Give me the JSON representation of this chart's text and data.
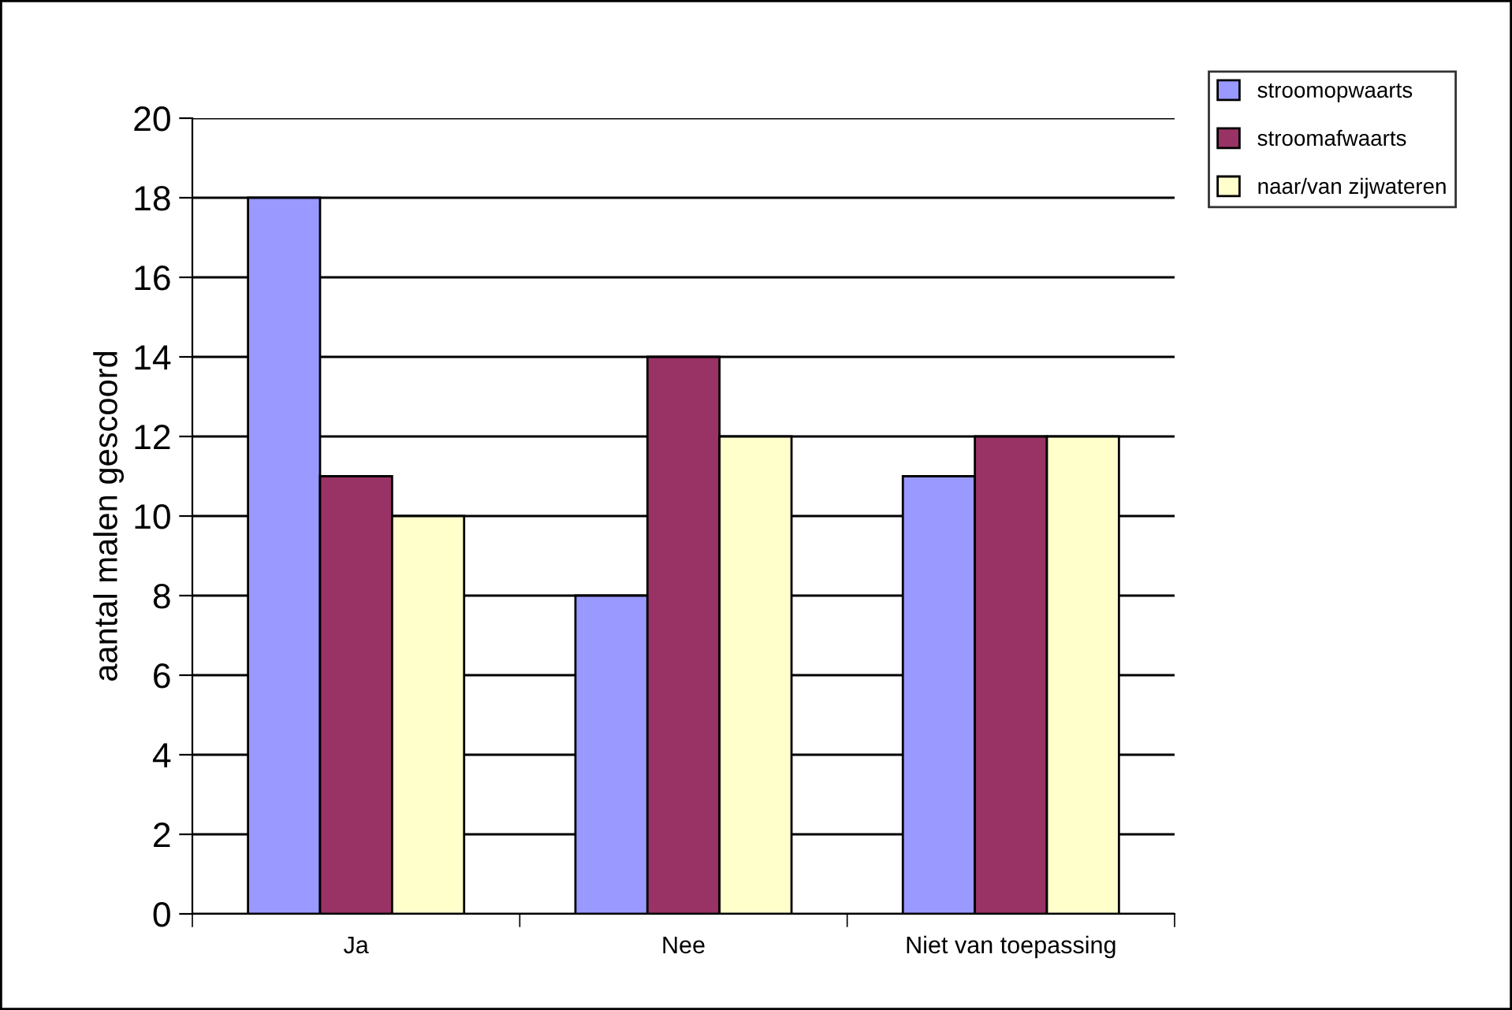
{
  "chart_data": {
    "type": "bar",
    "ylabel": "aantal malen gescoord",
    "categories": [
      "Ja",
      "Nee",
      "Niet van toepassing"
    ],
    "series": [
      {
        "name": "stroomopwaarts",
        "color": "#9999ff",
        "values": [
          18,
          8,
          11
        ]
      },
      {
        "name": "stroomafwaarts",
        "color": "#993366",
        "values": [
          11,
          14,
          12
        ]
      },
      {
        "name": "naar/van zijwateren",
        "color": "#ffffcc",
        "values": [
          10,
          12,
          12
        ]
      }
    ],
    "ylim": [
      0,
      20
    ],
    "yticks": [
      0,
      2,
      4,
      6,
      8,
      10,
      12,
      14,
      16,
      18,
      20
    ],
    "grid": "y",
    "legend": "top right"
  }
}
